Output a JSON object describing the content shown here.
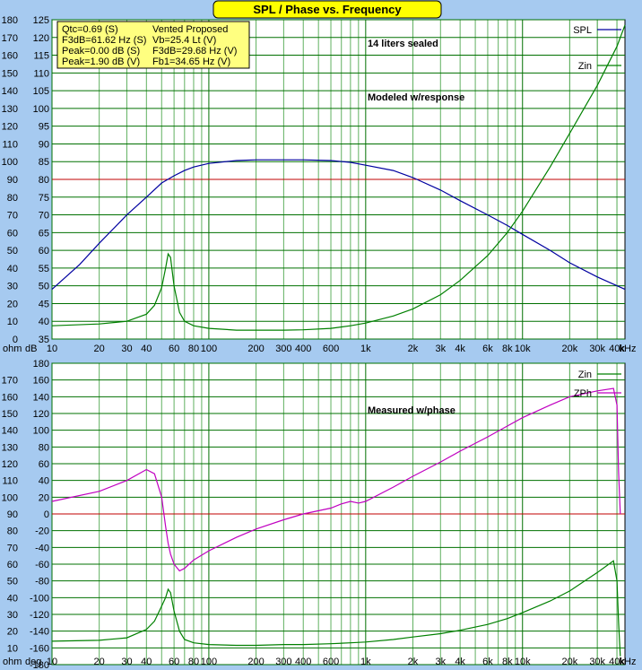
{
  "window": {
    "title": "SPL / Phase vs. Frequency",
    "colors": {
      "background": "#a6caf0",
      "plot_bg": "#ffffff",
      "title_bg": "#ffff00",
      "info_bg": "#ffff80",
      "grid_major": "#007000",
      "grid_minor": "#60b060",
      "reference": "#c00000",
      "spl": "#0000a0",
      "zin": "#008000",
      "zph": "#c000c0"
    }
  },
  "x_axis": {
    "unit_label": "kHz",
    "tick_labels": [
      {
        "f": 10,
        "label": "10"
      },
      {
        "f": 20,
        "label": "20"
      },
      {
        "f": 30,
        "label": "30"
      },
      {
        "f": 40,
        "label": "40"
      },
      {
        "f": 60,
        "label": "60"
      },
      {
        "f": 80,
        "label": "80"
      },
      {
        "f": 100,
        "label": "100"
      },
      {
        "f": 200,
        "label": "200"
      },
      {
        "f": 300,
        "label": "300"
      },
      {
        "f": 400,
        "label": "400"
      },
      {
        "f": 600,
        "label": "600"
      },
      {
        "f": 1000,
        "label": "1k"
      },
      {
        "f": 2000,
        "label": "2k"
      },
      {
        "f": 3000,
        "label": "3k"
      },
      {
        "f": 4000,
        "label": "4k"
      },
      {
        "f": 6000,
        "label": "6k"
      },
      {
        "f": 8000,
        "label": "8k"
      },
      {
        "f": 10000,
        "label": "10k"
      },
      {
        "f": 20000,
        "label": "20k"
      },
      {
        "f": 30000,
        "label": "30k"
      },
      {
        "f": 40000,
        "label": "40k"
      }
    ]
  },
  "info_box": {
    "lines": [
      {
        "left": "Qtc=0.69 (S)",
        "right": "Vented Proposed"
      },
      {
        "left": "F3dB=61.62 Hz (S)",
        "right": "Vb=25.4 Lt (V)"
      },
      {
        "left": "Peak=0.00 dB (S)",
        "right": "F3dB=29.68 Hz (V)"
      },
      {
        "left": "Peak=1.90 dB (V)",
        "right": "Fb1=34.65 Hz (V)"
      }
    ]
  },
  "chart_data": [
    {
      "type": "line",
      "scale_x": "log",
      "xlim": [
        10,
        45000
      ],
      "y_label": "dB",
      "y2_label": "ohm",
      "ylim": [
        35,
        125
      ],
      "y_ticks": [
        35,
        40,
        45,
        50,
        55,
        60,
        65,
        70,
        75,
        80,
        85,
        90,
        95,
        100,
        105,
        110,
        115,
        120,
        125
      ],
      "y2_ticks": [
        0,
        10,
        20,
        30,
        40,
        50,
        60,
        70,
        80,
        90,
        100,
        110,
        120,
        130,
        140,
        150,
        160,
        170,
        180
      ],
      "reference_line": 80,
      "annotations": [
        "14 liters sealed",
        "Modeled w/response"
      ],
      "grid": true,
      "legend_placement": "top-right",
      "series": [
        {
          "name": "SPL",
          "axis": "dB",
          "x": [
            10,
            15,
            20,
            30,
            40,
            50,
            60,
            70,
            80,
            100,
            150,
            200,
            300,
            400,
            600,
            800,
            1000,
            1500,
            2000,
            3000,
            4000,
            6000,
            8000,
            10000,
            15000,
            20000,
            30000,
            45000
          ],
          "y": [
            49,
            56,
            62,
            70,
            75,
            79,
            81,
            82.5,
            83.5,
            84.5,
            85.3,
            85.5,
            85.5,
            85.5,
            85.3,
            84.8,
            84,
            82.5,
            80.5,
            77,
            74,
            70,
            67,
            64.5,
            60,
            56.5,
            52.5,
            49
          ]
        },
        {
          "name": "Zin",
          "axis": "ohm",
          "x": [
            10,
            20,
            30,
            40,
            45,
            50,
            53,
            55,
            57,
            60,
            65,
            70,
            80,
            100,
            150,
            200,
            300,
            400,
            600,
            800,
            1000,
            1500,
            2000,
            3000,
            4000,
            6000,
            8000,
            10000,
            15000,
            20000,
            30000,
            40000,
            45000
          ],
          "y": [
            7.5,
            8.5,
            10,
            14,
            19,
            29,
            40,
            48,
            46,
            30,
            15,
            10,
            7.5,
            6,
            5,
            5,
            5,
            5.2,
            6,
            7.5,
            9,
            13,
            17,
            25,
            33,
            47,
            60,
            72,
            97,
            116,
            143,
            165,
            177
          ]
        }
      ]
    },
    {
      "type": "line",
      "scale_x": "log",
      "xlim": [
        10,
        45000
      ],
      "y_label": "deg",
      "y2_label": "ohm",
      "ylim": [
        -180,
        180
      ],
      "y_ticks": [
        -180,
        -160,
        -140,
        -120,
        -100,
        -80,
        -60,
        -40,
        -20,
        0,
        20,
        40,
        60,
        80,
        100,
        120,
        140,
        160,
        180
      ],
      "y2_ticks": [
        10,
        20,
        30,
        40,
        50,
        60,
        70,
        80,
        90,
        100,
        110,
        120,
        130,
        140,
        150,
        160,
        170
      ],
      "reference_line": 0,
      "annotations": [
        "Measured w/phase"
      ],
      "grid": true,
      "legend_placement": "top-right",
      "series": [
        {
          "name": "Zin",
          "axis": "ohm",
          "x": [
            10,
            20,
            30,
            40,
            45,
            50,
            53,
            55,
            57,
            60,
            65,
            70,
            80,
            100,
            150,
            200,
            300,
            400,
            600,
            800,
            1000,
            1500,
            2000,
            3000,
            4000,
            6000,
            8000,
            10000,
            15000,
            20000,
            30000,
            38000,
            40000,
            41000,
            42000
          ],
          "y": [
            14,
            14.5,
            16,
            21,
            26,
            35,
            40,
            45,
            43,
            32,
            20,
            15,
            13,
            12,
            11.5,
            11.5,
            12,
            12,
            12.5,
            13,
            13.5,
            15,
            16.5,
            18.5,
            20.5,
            24,
            27.5,
            31,
            38,
            44,
            55,
            62,
            50,
            25,
            5
          ]
        },
        {
          "name": "ZPh",
          "axis": "deg",
          "x": [
            10,
            20,
            30,
            40,
            45,
            50,
            53,
            55,
            57,
            60,
            65,
            70,
            80,
            100,
            150,
            200,
            300,
            400,
            600,
            700,
            800,
            900,
            1000,
            1500,
            2000,
            3000,
            4000,
            6000,
            8000,
            10000,
            15000,
            20000,
            30000,
            38000,
            40000,
            41000,
            42000
          ],
          "y": [
            15,
            27,
            40,
            53,
            48,
            20,
            -15,
            -35,
            -48,
            -60,
            -68,
            -65,
            -55,
            -44,
            -28,
            -18,
            -7,
            0,
            7,
            12,
            15,
            13,
            15,
            32,
            45,
            62,
            75,
            92,
            105,
            115,
            130,
            140,
            147,
            150,
            130,
            50,
            0
          ]
        }
      ]
    }
  ]
}
